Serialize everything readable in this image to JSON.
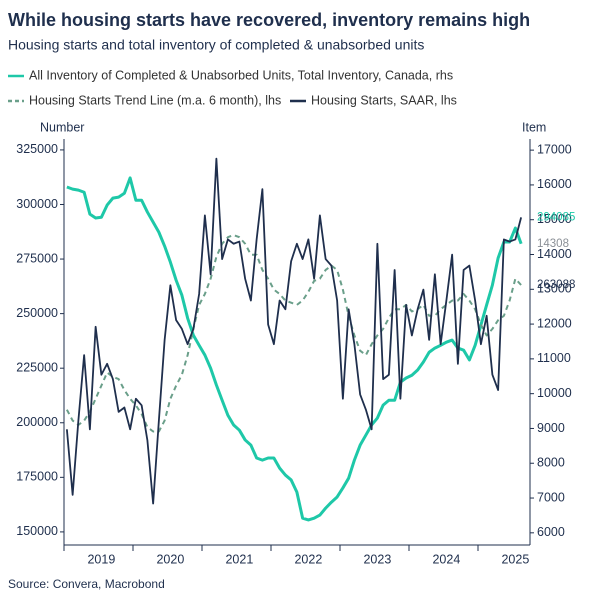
{
  "chart_data": {
    "type": "line",
    "title": "While housing starts have recovered, inventory remains high",
    "subtitle": "Housing starts and total inventory of completed & unabsorbed units",
    "y_label": "Number",
    "y2_label": "Item",
    "source": "Source: Convera, Macrobond",
    "categories": [
      null,
      null,
      null,
      null,
      null,
      null,
      "2019",
      null,
      null,
      null,
      null,
      null,
      null,
      null,
      null,
      null,
      null,
      null,
      "2020",
      null,
      null,
      null,
      null,
      null,
      null,
      null,
      null,
      null,
      null,
      null,
      "2021",
      null,
      null,
      null,
      null,
      null,
      null,
      null,
      null,
      null,
      null,
      null,
      "2022",
      null,
      null,
      null,
      null,
      null,
      null,
      null,
      null,
      null,
      null,
      null,
      "2023",
      null,
      null,
      null,
      null,
      null,
      null,
      null,
      null,
      null,
      null,
      null,
      "2024",
      null,
      null,
      null,
      null,
      null,
      null,
      null,
      null,
      null,
      null,
      null,
      "2025",
      null
    ],
    "series": [
      {
        "name": "All Inventory of Completed & Unabsorbed Units, Total Inventory, Canada, rhs",
        "color": "#1ec8a8",
        "axis": "y2",
        "dashed": false,
        "values": [
          15940,
          15880,
          15850,
          15790,
          15160,
          15050,
          15070,
          15420,
          15620,
          15650,
          15760,
          16200,
          15560,
          15560,
          15220,
          14930,
          14640,
          14240,
          13780,
          13260,
          12830,
          12170,
          11680,
          11390,
          11110,
          10730,
          10250,
          9810,
          9380,
          9100,
          8950,
          8670,
          8520,
          8150,
          8090,
          8150,
          8150,
          7860,
          7660,
          7520,
          7170,
          6420,
          6370,
          6420,
          6510,
          6710,
          6880,
          7030,
          7290,
          7570,
          8090,
          8520,
          8810,
          9100,
          9300,
          9670,
          9810,
          9810,
          10330,
          10450,
          10530,
          10680,
          10910,
          11190,
          11310,
          11390,
          11480,
          11540,
          11310,
          11250,
          10970,
          11390,
          11970,
          12550,
          13120,
          13900,
          14360,
          14360,
          14760,
          14308
        ]
      },
      {
        "name": "Housing Starts Trend Line (m.a. 6 month), lhs",
        "color": "#6a9f8a",
        "axis": "y",
        "dashed": true,
        "values": [
          206000,
          201000,
          199000,
          201000,
          205000,
          211000,
          217000,
          223000,
          221000,
          220000,
          215000,
          211000,
          208000,
          204000,
          198000,
          196000,
          196000,
          201000,
          211000,
          217000,
          222000,
          231000,
          243000,
          254000,
          259000,
          266000,
          276000,
          282000,
          285000,
          286000,
          285000,
          282000,
          277000,
          277000,
          270000,
          266000,
          261000,
          259000,
          256000,
          255000,
          254000,
          256000,
          260000,
          265000,
          266000,
          270000,
          272000,
          270000,
          261000,
          249000,
          240000,
          233000,
          231000,
          236000,
          240000,
          243000,
          248000,
          252000,
          252000,
          254000,
          251000,
          252000,
          254000,
          249000,
          249000,
          252000,
          254000,
          256000,
          256000,
          259000,
          256000,
          252000,
          245000,
          240000,
          243000,
          247000,
          249000,
          256000,
          266000,
          263088
        ]
      },
      {
        "name": "Housing Starts, SAAR, lhs",
        "color": "#1f2f4d",
        "axis": "y",
        "dashed": false,
        "values": [
          197000,
          167000,
          201000,
          231000,
          197000,
          244000,
          222000,
          227000,
          220000,
          205000,
          207000,
          197000,
          211000,
          208000,
          192000,
          163000,
          201000,
          238000,
          263000,
          247000,
          243000,
          236000,
          243000,
          259000,
          295000,
          268000,
          321000,
          275000,
          284000,
          282000,
          283000,
          266000,
          256000,
          284000,
          307000,
          245000,
          236000,
          256000,
          252000,
          274000,
          282000,
          275000,
          284000,
          266000,
          295000,
          275000,
          272000,
          256000,
          211000,
          252000,
          236000,
          213000,
          206000,
          197000,
          282000,
          220000,
          222000,
          270000,
          211000,
          254000,
          240000,
          252000,
          261000,
          238000,
          268000,
          236000,
          256000,
          277000,
          227000,
          270000,
          272000,
          256000,
          236000,
          249000,
          222000,
          215000,
          284000,
          283000,
          284000,
          294085
        ]
      }
    ],
    "annotations": [
      {
        "value": 294085,
        "axis": "y",
        "color": "#1ec8a8"
      },
      {
        "value": 14308,
        "axis": "y2",
        "color": "#8a8f96"
      },
      {
        "value": 263088,
        "axis": "y",
        "color": "#1f2f4d"
      }
    ],
    "ylim": [
      144000,
      330000
    ],
    "yticks": [
      150000,
      175000,
      200000,
      225000,
      250000,
      275000,
      300000,
      325000
    ],
    "y2lim": [
      5650,
      17320
    ],
    "y2ticks": [
      6000,
      7000,
      8000,
      9000,
      10000,
      11000,
      12000,
      13000,
      14000,
      15000,
      16000,
      17000
    ]
  }
}
